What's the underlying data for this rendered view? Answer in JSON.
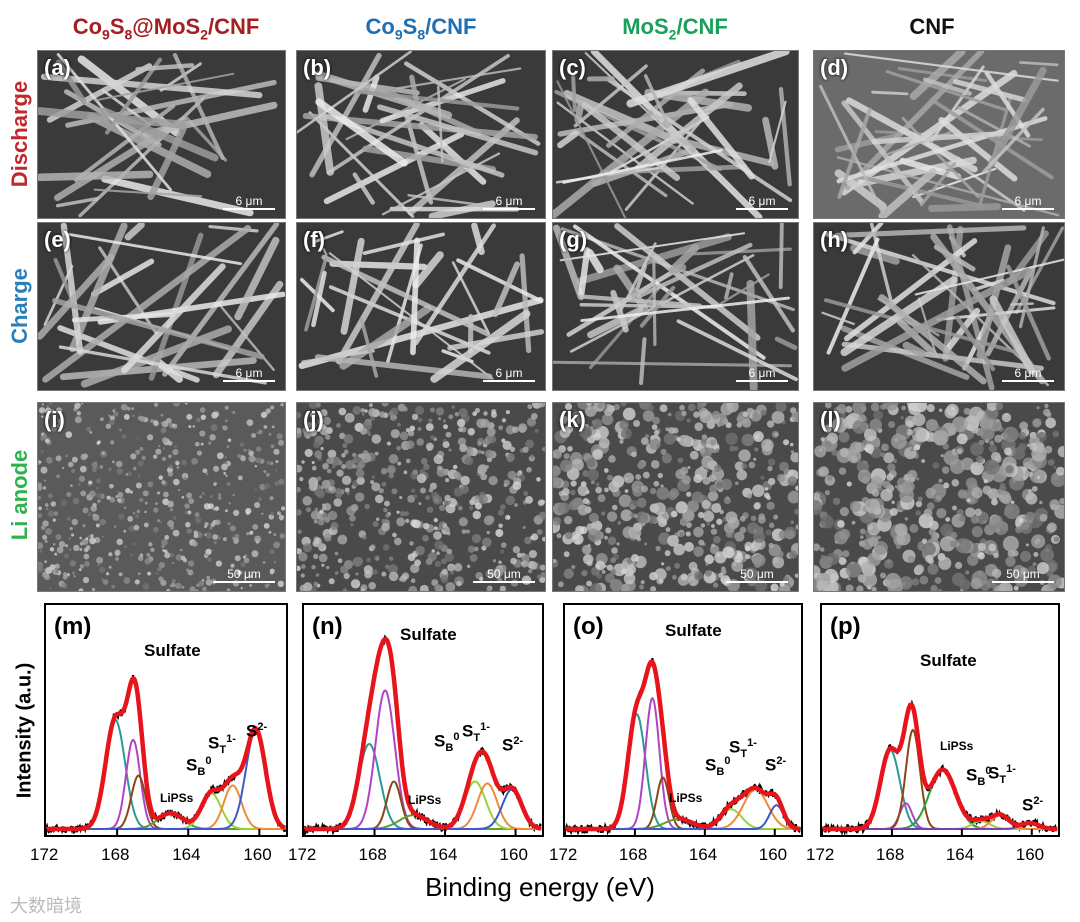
{
  "columns": [
    {
      "pre": "Co",
      "s1": "9",
      "m1": "S",
      "s2": "8",
      "post": "@MoS",
      "s3": "2",
      "tail": "/CNF",
      "color": "#a41e22"
    },
    {
      "pre": "Co",
      "s1": "9",
      "m1": "S",
      "s2": "8",
      "post": "/CNF",
      "s3": "",
      "tail": "",
      "color": "#1f6fb2"
    },
    {
      "pre": "MoS",
      "s1": "2",
      "m1": "/CNF",
      "s2": "",
      "post": "",
      "s3": "",
      "tail": "",
      "color": "#1aa05a"
    },
    {
      "pre": "CNF",
      "s1": "",
      "m1": "",
      "s2": "",
      "post": "",
      "s3": "",
      "tail": "",
      "color": "#111111"
    }
  ],
  "rows": [
    {
      "label": "Discharge",
      "color": "#c0282d"
    },
    {
      "label": "Charge",
      "color": "#2b7fb8"
    },
    {
      "label": "Li anode",
      "color": "#2fb24c"
    }
  ],
  "sem_panels": [
    {
      "label": "(a)",
      "scale": "6 μm"
    },
    {
      "label": "(b)",
      "scale": "6 μm"
    },
    {
      "label": "(c)",
      "scale": "6 μm"
    },
    {
      "label": "(d)",
      "scale": "6 μm"
    },
    {
      "label": "(e)",
      "scale": "6 μm"
    },
    {
      "label": "(f)",
      "scale": "6 μm"
    },
    {
      "label": "(g)",
      "scale": "6 μm"
    },
    {
      "label": "(h)",
      "scale": "6 μm"
    },
    {
      "label": "(i)",
      "scale": "50 μm"
    },
    {
      "label": "(j)",
      "scale": "50 μm"
    },
    {
      "label": "(k)",
      "scale": "50 μm"
    },
    {
      "label": "(l)",
      "scale": "50 μm"
    }
  ],
  "xps": {
    "ylabel": "Intensity (a.u.)",
    "xlabel": "Binding energy (eV)",
    "ticks": [
      "172",
      "168",
      "164",
      "160"
    ],
    "panels": [
      {
        "label": "(m)",
        "sulfate": "Sulfate",
        "lipss": "LiPSs",
        "sb": "S",
        "sb_sub": "B",
        "sb_sup": "0",
        "st": "S",
        "st_sub": "T",
        "st_sup": "1-",
        "s2": "S",
        "s2_sup": "2-"
      },
      {
        "label": "(n)",
        "sulfate": "Sulfate",
        "lipss": "LiPSs",
        "sb": "S",
        "sb_sub": "B",
        "sb_sup": "0",
        "st": "S",
        "st_sub": "T",
        "st_sup": "1-",
        "s2": "S",
        "s2_sup": "2-"
      },
      {
        "label": "(o)",
        "sulfate": "Sulfate",
        "lipss": "LiPSs",
        "sb": "S",
        "sb_sub": "B",
        "sb_sup": "0",
        "st": "S",
        "st_sub": "T",
        "st_sup": "1-",
        "s2": "S",
        "s2_sup": "2-"
      },
      {
        "label": "(p)",
        "sulfate": "Sulfate",
        "lipss": "LiPSs",
        "sb": "S",
        "sb_sub": "B",
        "sb_sup": "0",
        "st": "S",
        "st_sub": "T",
        "st_sup": "1-",
        "s2": "S",
        "s2_sup": "2-"
      }
    ]
  },
  "watermark": "大数暗境",
  "chart_data": [
    {
      "type": "line",
      "title": "(m)",
      "xlabel": "Binding energy (eV)",
      "ylabel": "Intensity (a.u.)",
      "xlim": [
        172,
        158.5
      ],
      "xticks": [
        172,
        168,
        164,
        160
      ],
      "peaks": [
        {
          "name": "Sulfate-1",
          "center": 168.1,
          "height": 0.55,
          "width": 0.55,
          "color": "#2a9a93"
        },
        {
          "name": "Sulfate-2",
          "center": 167.1,
          "height": 0.45,
          "width": 0.4,
          "color": "#b044c4"
        },
        {
          "name": "Sulfate-3",
          "center": 166.8,
          "height": 0.27,
          "width": 0.4,
          "color": "#8b4513"
        },
        {
          "name": "LiPSs",
          "center": 165.0,
          "height": 0.08,
          "width": 0.7,
          "color": "#5aa02c"
        },
        {
          "name": "S_B0",
          "center": 162.7,
          "height": 0.18,
          "width": 0.55,
          "color": "#9bd13a"
        },
        {
          "name": "S_T1-",
          "center": 161.5,
          "height": 0.22,
          "width": 0.5,
          "color": "#ee8b3a"
        },
        {
          "name": "S2-",
          "center": 160.2,
          "height": 0.5,
          "width": 0.55,
          "color": "#3c5ac8"
        }
      ]
    },
    {
      "type": "line",
      "title": "(n)",
      "xlabel": "Binding energy (eV)",
      "ylabel": "Intensity (a.u.)",
      "xlim": [
        172,
        158.5
      ],
      "xticks": [
        172,
        168,
        164,
        160
      ],
      "peaks": [
        {
          "name": "Sulfate-1",
          "center": 168.3,
          "height": 0.43,
          "width": 0.6,
          "color": "#2a9a93"
        },
        {
          "name": "Sulfate-2",
          "center": 167.4,
          "height": 0.7,
          "width": 0.55,
          "color": "#b044c4"
        },
        {
          "name": "Sulfate-3",
          "center": 166.9,
          "height": 0.24,
          "width": 0.4,
          "color": "#8b4513"
        },
        {
          "name": "LiPSs",
          "center": 165.8,
          "height": 0.07,
          "width": 0.8,
          "color": "#5aa02c"
        },
        {
          "name": "S_B0",
          "center": 162.3,
          "height": 0.24,
          "width": 0.6,
          "color": "#9bd13a"
        },
        {
          "name": "S_T1-",
          "center": 161.6,
          "height": 0.23,
          "width": 0.55,
          "color": "#ee8b3a"
        },
        {
          "name": "S2-",
          "center": 160.2,
          "height": 0.2,
          "width": 0.55,
          "color": "#3c5ac8"
        }
      ]
    },
    {
      "type": "line",
      "title": "(o)",
      "xlabel": "Binding energy (eV)",
      "ylabel": "Intensity (a.u.)",
      "xlim": [
        172,
        158.5
      ],
      "xticks": [
        172,
        168,
        164,
        160
      ],
      "peaks": [
        {
          "name": "Sulfate-1",
          "center": 167.9,
          "height": 0.58,
          "width": 0.5,
          "color": "#2a9a93"
        },
        {
          "name": "Sulfate-2",
          "center": 167.0,
          "height": 0.66,
          "width": 0.4,
          "color": "#b044c4"
        },
        {
          "name": "Sulfate-3",
          "center": 166.4,
          "height": 0.26,
          "width": 0.35,
          "color": "#8b4513"
        },
        {
          "name": "LiPSs",
          "center": 165.5,
          "height": 0.05,
          "width": 0.8,
          "color": "#5aa02c"
        },
        {
          "name": "S_B0",
          "center": 162.5,
          "height": 0.1,
          "width": 0.6,
          "color": "#9bd13a"
        },
        {
          "name": "S_T1-",
          "center": 161.1,
          "height": 0.2,
          "width": 0.7,
          "color": "#ee8b3a"
        },
        {
          "name": "S2-",
          "center": 159.9,
          "height": 0.12,
          "width": 0.4,
          "color": "#3c5ac8"
        }
      ]
    },
    {
      "type": "line",
      "title": "(p)",
      "xlabel": "Binding energy (eV)",
      "ylabel": "Intensity (a.u.)",
      "xlim": [
        172,
        158.5
      ],
      "xticks": [
        172,
        168,
        164,
        160
      ],
      "peaks": [
        {
          "name": "Sulfate-1",
          "center": 168.1,
          "height": 0.4,
          "width": 0.55,
          "color": "#2a9a93"
        },
        {
          "name": "Sulfate-2",
          "center": 167.2,
          "height": 0.13,
          "width": 0.35,
          "color": "#b044c4"
        },
        {
          "name": "Sulfate-3",
          "center": 166.8,
          "height": 0.5,
          "width": 0.4,
          "color": "#8b4513"
        },
        {
          "name": "LiPSs",
          "center": 165.1,
          "height": 0.3,
          "width": 0.75,
          "color": "#2e9e3a"
        },
        {
          "name": "S_B0",
          "center": 162.9,
          "height": 0.04,
          "width": 0.5,
          "color": "#9bd13a"
        },
        {
          "name": "S_T1-",
          "center": 161.8,
          "height": 0.07,
          "width": 0.5,
          "color": "#ee8b3a"
        },
        {
          "name": "S2-",
          "center": 160.1,
          "height": 0.03,
          "width": 0.5,
          "color": "#7a3fa8"
        }
      ]
    }
  ]
}
